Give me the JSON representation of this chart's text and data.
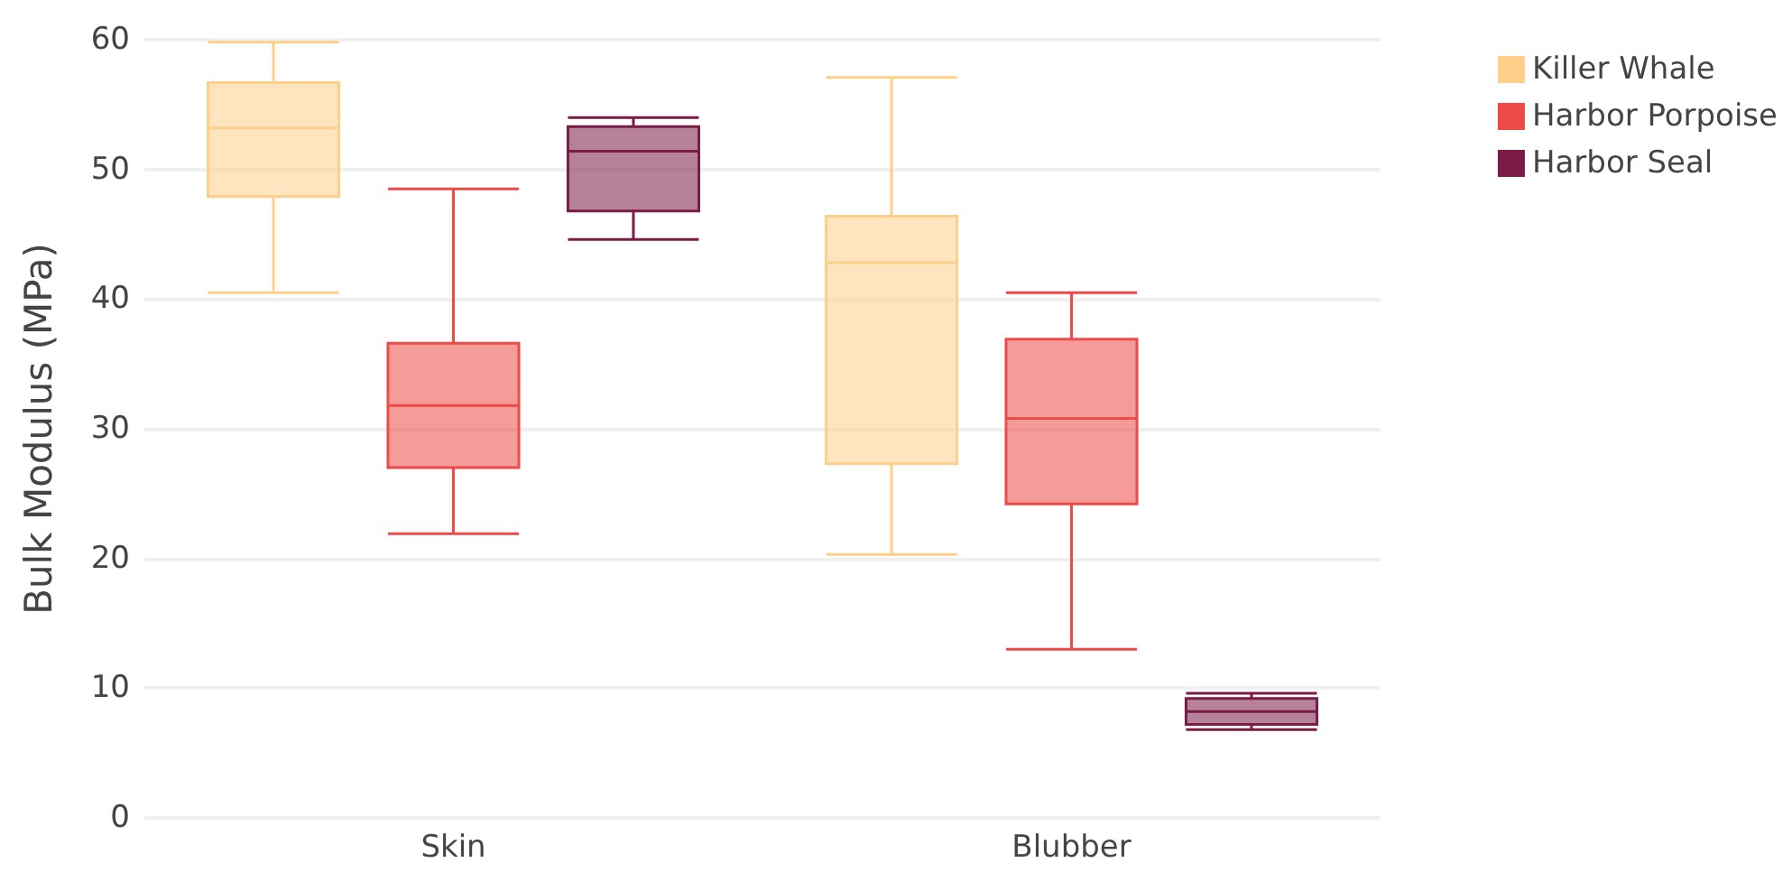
{
  "chart_data": {
    "type": "box",
    "ylabel": "Bulk Modulus (MPa)",
    "categories": [
      "Skin",
      "Blubber"
    ],
    "ylim": [
      0,
      60
    ],
    "yticks": [
      0,
      10,
      20,
      30,
      40,
      50,
      60
    ],
    "grid": "y",
    "legend": "top right",
    "series": [
      {
        "name": "Killer Whale",
        "color": "#fdcf8b",
        "boxes": [
          {
            "low": 40.5,
            "q1": 47.9,
            "median": 53.2,
            "q3": 56.7,
            "high": 59.8
          },
          {
            "low": 20.3,
            "q1": 27.3,
            "median": 42.8,
            "q3": 46.4,
            "high": 57.1
          }
        ]
      },
      {
        "name": "Harbor Porpoise",
        "color": "#ec4b48",
        "boxes": [
          {
            "low": 21.9,
            "q1": 27.0,
            "median": 31.8,
            "q3": 36.6,
            "high": 48.5
          },
          {
            "low": 13.0,
            "q1": 24.2,
            "median": 30.8,
            "q3": 36.9,
            "high": 40.5
          }
        ]
      },
      {
        "name": "Harbor Seal",
        "color": "#7a1c45",
        "boxes": [
          {
            "low": 44.6,
            "q1": 46.8,
            "median": 51.4,
            "q3": 53.3,
            "high": 54.0
          },
          {
            "low": 6.8,
            "q1": 7.2,
            "median": 8.2,
            "q3": 9.2,
            "high": 9.6
          }
        ]
      }
    ]
  }
}
